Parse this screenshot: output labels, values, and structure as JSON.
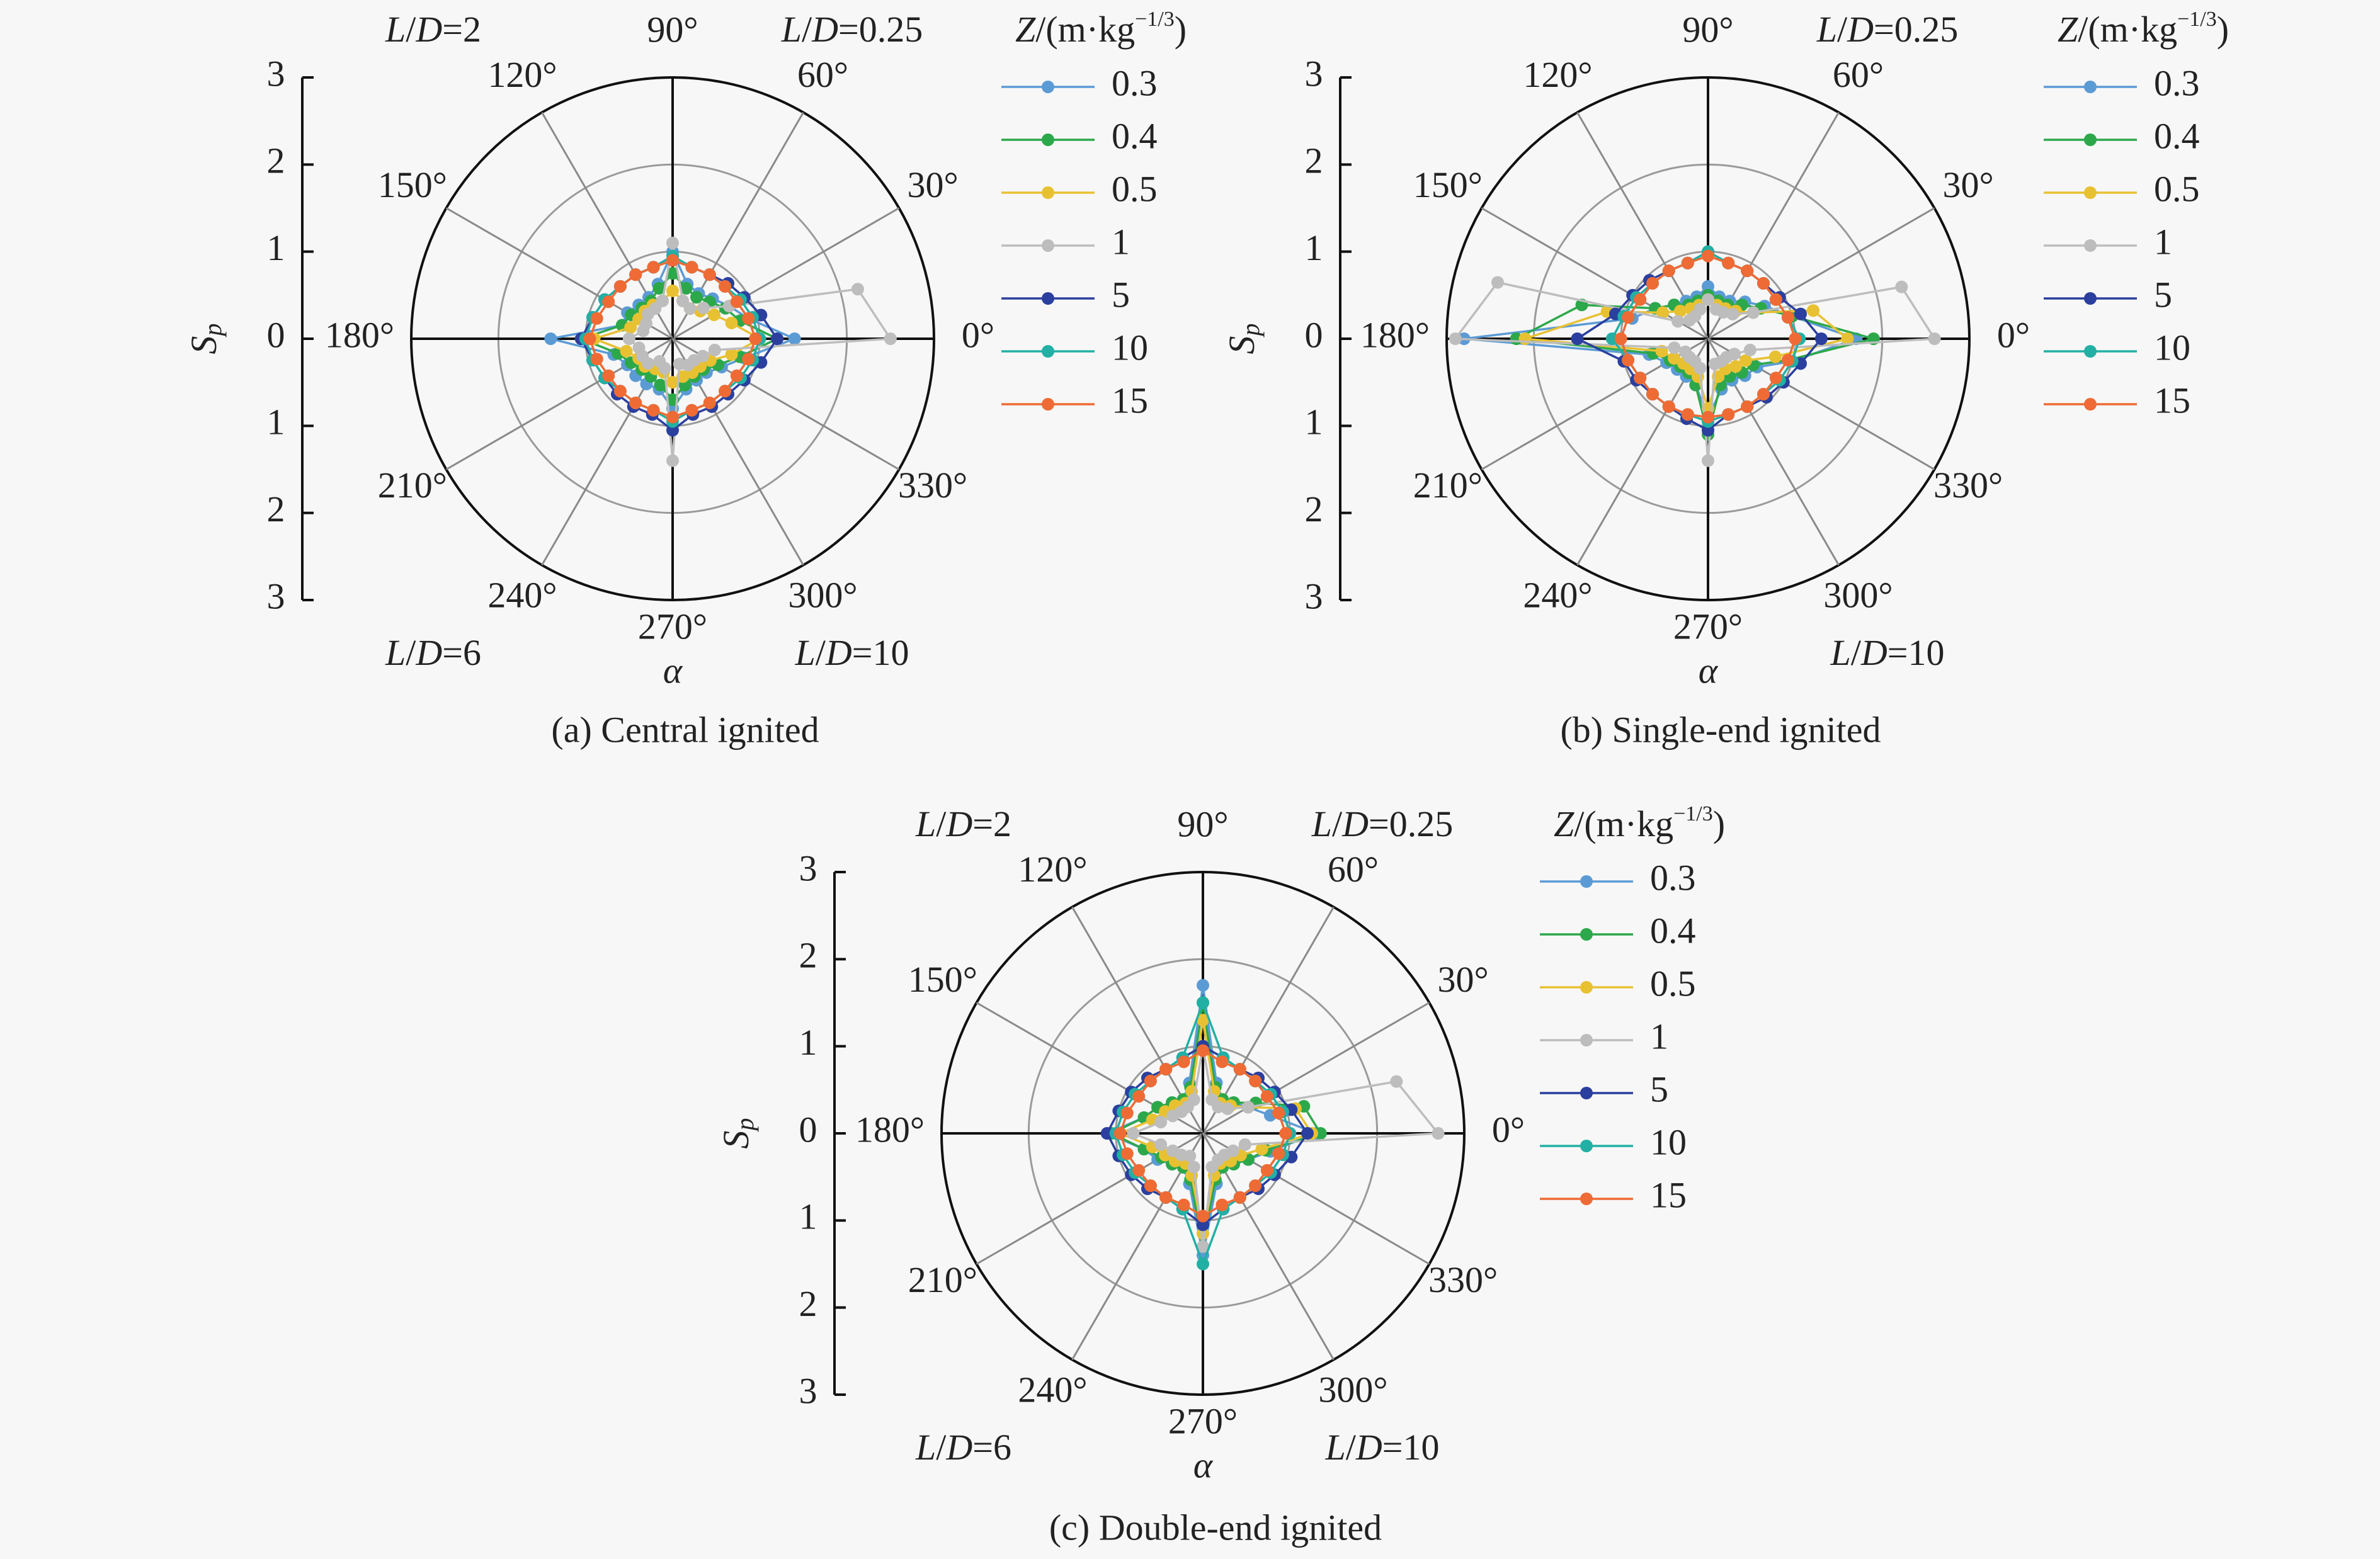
{
  "legend_title": {
    "prefix": "Z",
    "unit_open": "/(m·kg",
    "exponent": "−1/3",
    "unit_close": ")"
  },
  "y_axis": {
    "label": "S",
    "label_sub": "p",
    "ticks": [
      "3",
      "2",
      "1",
      "0",
      "1",
      "2",
      "3"
    ]
  },
  "angle_ticks": [
    "0°",
    "30°",
    "60°",
    "90°",
    "120°",
    "150°",
    "180°",
    "210°",
    "240°",
    "270°",
    "300°",
    "330°"
  ],
  "angle_label": "α",
  "quadrant_labels": {
    "tl": {
      "sym1": "L",
      "sep": "/",
      "sym2": "D",
      "val": "=2"
    },
    "tr": {
      "sym1": "L",
      "sep": "/",
      "sym2": "D",
      "val": "=0.25"
    },
    "bl": {
      "sym1": "L",
      "sep": "/",
      "sym2": "D",
      "val": "=6"
    },
    "br": {
      "sym1": "L",
      "sep": "/",
      "sym2": "D",
      "val": "=10"
    }
  },
  "series_meta": [
    {
      "name": "0.3",
      "color": "#5b9bd5"
    },
    {
      "name": "0.4",
      "color": "#2ca84a"
    },
    {
      "name": "0.5",
      "color": "#e8c132"
    },
    {
      "name": "1",
      "color": "#bdbdbd"
    },
    {
      "name": "5",
      "color": "#2b3f9e"
    },
    {
      "name": "10",
      "color": "#22b0a4"
    },
    {
      "name": "15",
      "color": "#ef6b35"
    }
  ],
  "chart_data": [
    {
      "type": "polar-line",
      "caption": "(a) Central ignited",
      "rlim": [
        0,
        3
      ],
      "show_quadrant_tl": true,
      "show_quadrant_tr": true,
      "show_quadrant_bl": true,
      "show_quadrant_br": true,
      "angles": [
        0,
        15,
        30,
        45,
        60,
        75,
        90,
        105,
        120,
        135,
        150,
        165,
        180,
        195,
        210,
        225,
        240,
        255,
        270,
        285,
        300,
        315,
        330,
        345
      ],
      "series": [
        {
          "name": "0.3",
          "values": [
            1.4,
            0.9,
            0.75,
            0.65,
            0.6,
            0.65,
            1.0,
            0.65,
            0.55,
            0.55,
            0.6,
            0.6,
            1.4,
            0.7,
            0.6,
            0.6,
            0.6,
            0.6,
            0.8,
            0.6,
            0.55,
            0.55,
            0.65,
            0.85
          ]
        },
        {
          "name": "0.4",
          "values": [
            1.2,
            0.8,
            0.7,
            0.6,
            0.55,
            0.6,
            0.75,
            0.6,
            0.5,
            0.5,
            0.55,
            0.6,
            1.05,
            0.65,
            0.55,
            0.5,
            0.5,
            0.55,
            0.7,
            0.55,
            0.5,
            0.5,
            0.6,
            0.8
          ]
        },
        {
          "name": "0.5",
          "values": [
            1.0,
            0.7,
            0.55,
            0.45,
            0.4,
            0.45,
            0.55,
            0.45,
            0.45,
            0.45,
            0.45,
            0.5,
            0.9,
            0.55,
            0.45,
            0.45,
            0.4,
            0.4,
            0.5,
            0.45,
            0.45,
            0.45,
            0.5,
            0.7
          ]
        },
        {
          "name": "1",
          "values": [
            2.5,
            2.2,
            0.75,
            0.5,
            0.4,
            0.45,
            1.1,
            0.45,
            0.4,
            0.4,
            0.35,
            0.35,
            0.5,
            0.4,
            0.4,
            0.4,
            0.3,
            0.35,
            1.4,
            0.3,
            0.35,
            0.35,
            0.4,
            0.5
          ]
        },
        {
          "name": "5",
          "values": [
            1.2,
            1.05,
            0.95,
            0.9,
            0.85,
            0.85,
            0.95,
            0.85,
            0.85,
            0.85,
            0.9,
            0.95,
            1.05,
            0.95,
            0.9,
            0.9,
            0.9,
            0.9,
            1.05,
            0.9,
            0.9,
            0.9,
            0.95,
            1.05
          ]
        },
        {
          "name": "10",
          "values": [
            1.0,
            0.95,
            0.9,
            0.85,
            0.85,
            0.85,
            0.95,
            0.85,
            0.85,
            0.85,
            0.9,
            0.95,
            1.0,
            0.95,
            0.9,
            0.85,
            0.85,
            0.85,
            0.95,
            0.85,
            0.85,
            0.85,
            0.9,
            0.95
          ]
        },
        {
          "name": "15",
          "values": [
            0.95,
            0.9,
            0.85,
            0.85,
            0.85,
            0.85,
            0.9,
            0.85,
            0.85,
            0.85,
            0.85,
            0.9,
            0.95,
            0.9,
            0.85,
            0.85,
            0.85,
            0.85,
            0.9,
            0.85,
            0.85,
            0.85,
            0.85,
            0.9
          ]
        }
      ]
    },
    {
      "type": "polar-line",
      "caption": "(b) Single-end ignited",
      "rlim": [
        0,
        3
      ],
      "show_quadrant_tl": false,
      "show_quadrant_tr": true,
      "show_quadrant_bl": false,
      "show_quadrant_br": true,
      "angles": [
        0,
        15,
        30,
        45,
        60,
        75,
        90,
        105,
        120,
        135,
        150,
        165,
        180,
        195,
        210,
        225,
        240,
        255,
        270,
        285,
        300,
        315,
        330,
        345
      ],
      "series": [
        {
          "name": "0.3",
          "values": [
            1.7,
            1.0,
            0.75,
            0.6,
            0.5,
            0.5,
            0.6,
            0.5,
            0.5,
            0.55,
            0.7,
            0.9,
            2.8,
            0.7,
            0.55,
            0.5,
            0.5,
            0.55,
            0.9,
            0.6,
            0.55,
            0.6,
            0.65,
            1.0
          ]
        },
        {
          "name": "0.4",
          "values": [
            1.9,
            1.0,
            0.7,
            0.55,
            0.45,
            0.45,
            0.5,
            0.45,
            0.45,
            0.55,
            0.7,
            1.5,
            2.2,
            0.65,
            0.5,
            0.45,
            0.45,
            0.55,
            1.1,
            0.55,
            0.5,
            0.55,
            0.6,
            0.95
          ]
        },
        {
          "name": "0.5",
          "values": [
            1.6,
            1.25,
            0.6,
            0.45,
            0.4,
            0.4,
            0.45,
            0.4,
            0.4,
            0.45,
            0.6,
            1.2,
            2.1,
            0.55,
            0.45,
            0.4,
            0.4,
            0.45,
            0.8,
            0.45,
            0.4,
            0.45,
            0.5,
            0.8
          ]
        },
        {
          "name": "1",
          "values": [
            2.6,
            2.3,
            0.6,
            0.4,
            0.35,
            0.35,
            0.45,
            0.35,
            0.3,
            0.3,
            0.4,
            2.5,
            2.9,
            0.4,
            0.3,
            0.3,
            0.3,
            0.35,
            1.4,
            0.3,
            0.3,
            0.3,
            0.35,
            0.5
          ]
        },
        {
          "name": "5",
          "values": [
            1.3,
            1.1,
            0.95,
            0.9,
            0.9,
            0.9,
            1.0,
            0.9,
            0.9,
            0.95,
            1.0,
            1.1,
            1.5,
            1.0,
            0.95,
            0.9,
            0.9,
            0.95,
            1.05,
            0.9,
            0.9,
            0.95,
            1.0,
            1.1
          ]
        },
        {
          "name": "10",
          "values": [
            1.05,
            0.95,
            0.9,
            0.9,
            0.9,
            0.9,
            1.0,
            0.9,
            0.9,
            0.9,
            0.95,
            1.0,
            1.1,
            0.95,
            0.9,
            0.9,
            0.9,
            0.9,
            0.95,
            0.9,
            0.9,
            0.9,
            0.95,
            1.0
          ]
        },
        {
          "name": "15",
          "values": [
            1.0,
            0.95,
            0.9,
            0.9,
            0.9,
            0.9,
            0.95,
            0.9,
            0.9,
            0.9,
            0.9,
            0.95,
            1.0,
            0.95,
            0.9,
            0.9,
            0.9,
            0.9,
            0.9,
            0.9,
            0.9,
            0.9,
            0.9,
            0.95
          ]
        }
      ]
    },
    {
      "type": "polar-line",
      "caption": "(c) Double-end ignited",
      "rlim": [
        0,
        3
      ],
      "show_quadrant_tl": true,
      "show_quadrant_tr": true,
      "show_quadrant_bl": true,
      "show_quadrant_br": true,
      "angles": [
        0,
        15,
        30,
        45,
        60,
        75,
        90,
        105,
        120,
        135,
        150,
        165,
        180,
        195,
        210,
        225,
        240,
        255,
        270,
        285,
        300,
        315,
        330,
        345
      ],
      "series": [
        {
          "name": "0.3",
          "values": [
            1.3,
            0.8,
            0.6,
            0.5,
            0.45,
            0.6,
            1.7,
            0.6,
            0.45,
            0.5,
            0.6,
            0.7,
            1.1,
            0.7,
            0.6,
            0.5,
            0.45,
            0.6,
            1.4,
            0.6,
            0.45,
            0.5,
            0.6,
            0.8
          ]
        },
        {
          "name": "0.4",
          "values": [
            1.35,
            1.2,
            0.7,
            0.5,
            0.45,
            0.55,
            1.5,
            0.55,
            0.45,
            0.5,
            0.6,
            0.7,
            1.05,
            0.7,
            0.55,
            0.5,
            0.45,
            0.55,
            1.3,
            0.55,
            0.45,
            0.5,
            0.6,
            0.75
          ]
        },
        {
          "name": "0.5",
          "values": [
            1.25,
            1.1,
            0.6,
            0.45,
            0.4,
            0.5,
            1.3,
            0.5,
            0.4,
            0.45,
            0.5,
            0.6,
            0.95,
            0.6,
            0.5,
            0.45,
            0.4,
            0.5,
            1.15,
            0.5,
            0.4,
            0.45,
            0.5,
            0.7
          ]
        },
        {
          "name": "1",
          "values": [
            2.7,
            2.3,
            0.6,
            0.4,
            0.35,
            0.4,
            1.0,
            0.4,
            0.35,
            0.35,
            0.4,
            0.5,
            0.8,
            0.5,
            0.4,
            0.35,
            0.3,
            0.4,
            1.3,
            0.4,
            0.35,
            0.35,
            0.4,
            0.5
          ]
        },
        {
          "name": "5",
          "values": [
            1.2,
            1.05,
            0.95,
            0.9,
            0.85,
            0.9,
            1.0,
            0.9,
            0.85,
            0.9,
            0.95,
            1.0,
            1.1,
            1.0,
            0.95,
            0.9,
            0.85,
            0.9,
            1.05,
            0.9,
            0.85,
            0.9,
            0.95,
            1.05
          ]
        },
        {
          "name": "10",
          "values": [
            1.0,
            0.95,
            0.9,
            0.85,
            0.85,
            0.9,
            1.5,
            0.9,
            0.85,
            0.85,
            0.9,
            0.95,
            1.0,
            0.95,
            0.9,
            0.85,
            0.85,
            0.9,
            1.5,
            0.9,
            0.85,
            0.85,
            0.9,
            0.95
          ]
        },
        {
          "name": "15",
          "values": [
            0.95,
            0.9,
            0.85,
            0.85,
            0.85,
            0.85,
            0.95,
            0.85,
            0.85,
            0.85,
            0.85,
            0.9,
            0.95,
            0.9,
            0.85,
            0.85,
            0.85,
            0.85,
            0.95,
            0.85,
            0.85,
            0.85,
            0.85,
            0.9
          ]
        }
      ]
    }
  ]
}
